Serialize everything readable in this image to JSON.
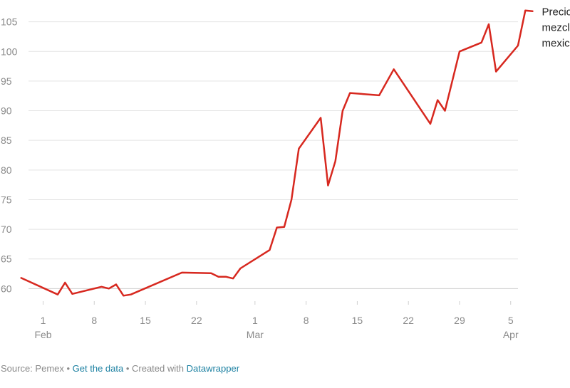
{
  "chart_data": {
    "type": "line",
    "title": "",
    "xlabel": "",
    "ylabel": "",
    "ylim": [
      58,
      107
    ],
    "y_ticks": [
      60,
      65,
      70,
      75,
      80,
      85,
      90,
      95,
      100,
      105
    ],
    "x_range": [
      "2020-01-30",
      "2020-04-06"
    ],
    "x_ticks": [
      {
        "date": "2020-02-01",
        "label": "1",
        "sublabel": "Feb"
      },
      {
        "date": "2020-02-08",
        "label": "8",
        "sublabel": ""
      },
      {
        "date": "2020-02-15",
        "label": "15",
        "sublabel": ""
      },
      {
        "date": "2020-02-22",
        "label": "22",
        "sublabel": ""
      },
      {
        "date": "2020-03-01",
        "label": "1",
        "sublabel": "Mar"
      },
      {
        "date": "2020-03-08",
        "label": "8",
        "sublabel": ""
      },
      {
        "date": "2020-03-15",
        "label": "15",
        "sublabel": ""
      },
      {
        "date": "2020-03-22",
        "label": "22",
        "sublabel": ""
      },
      {
        "date": "2020-03-29",
        "label": "29",
        "sublabel": ""
      },
      {
        "date": "2020-04-05",
        "label": "5",
        "sublabel": "Apr"
      }
    ],
    "grid": true,
    "color": "#d7281f",
    "series": [
      {
        "name": "Precio mezcla mexicana",
        "label_lines": [
          "Precio",
          "mezcla",
          "mexicana"
        ],
        "points": [
          {
            "x": "2020-01-29",
            "y": 61.8
          },
          {
            "x": "2020-02-03",
            "y": 59.0
          },
          {
            "x": "2020-02-04",
            "y": 61.0
          },
          {
            "x": "2020-02-05",
            "y": 59.1
          },
          {
            "x": "2020-02-06",
            "y": 59.4
          },
          {
            "x": "2020-02-09",
            "y": 60.3
          },
          {
            "x": "2020-02-10",
            "y": 60.0
          },
          {
            "x": "2020-02-11",
            "y": 60.7
          },
          {
            "x": "2020-02-12",
            "y": 58.8
          },
          {
            "x": "2020-02-13",
            "y": 59.0
          },
          {
            "x": "2020-02-20",
            "y": 62.7
          },
          {
            "x": "2020-02-24",
            "y": 62.6
          },
          {
            "x": "2020-02-25",
            "y": 62.0
          },
          {
            "x": "2020-02-26",
            "y": 62.0
          },
          {
            "x": "2020-02-27",
            "y": 61.7
          },
          {
            "x": "2020-02-28",
            "y": 63.4
          },
          {
            "x": "2020-03-03",
            "y": 66.5
          },
          {
            "x": "2020-03-04",
            "y": 70.3
          },
          {
            "x": "2020-03-05",
            "y": 70.4
          },
          {
            "x": "2020-03-06",
            "y": 75.0
          },
          {
            "x": "2020-03-07",
            "y": 83.6
          },
          {
            "x": "2020-03-10",
            "y": 88.8
          },
          {
            "x": "2020-03-11",
            "y": 77.4
          },
          {
            "x": "2020-03-12",
            "y": 81.5
          },
          {
            "x": "2020-03-13",
            "y": 90.0
          },
          {
            "x": "2020-03-14",
            "y": 93.0
          },
          {
            "x": "2020-03-18",
            "y": 92.6
          },
          {
            "x": "2020-03-20",
            "y": 97.0
          },
          {
            "x": "2020-03-25",
            "y": 87.8
          },
          {
            "x": "2020-03-26",
            "y": 91.8
          },
          {
            "x": "2020-03-27",
            "y": 90.0
          },
          {
            "x": "2020-03-29",
            "y": 100.0
          },
          {
            "x": "2020-04-01",
            "y": 101.5
          },
          {
            "x": "2020-04-02",
            "y": 104.6
          },
          {
            "x": "2020-04-03",
            "y": 96.6
          },
          {
            "x": "2020-04-06",
            "y": 101.0
          },
          {
            "x": "2020-04-07",
            "y": 106.9
          },
          {
            "x": "2020-04-08",
            "y": 106.8
          }
        ]
      }
    ]
  },
  "footer": {
    "source": "Source: Pemex",
    "separator": " • ",
    "get_data": "Get the data",
    "created_with": "Created with",
    "datawrapper": "Datawrapper"
  }
}
